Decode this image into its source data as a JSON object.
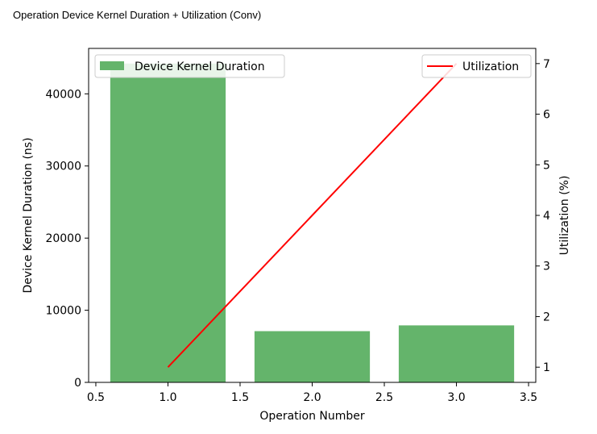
{
  "page_title": "Operation Device Kernel Duration + Utilization (Conv)",
  "colors": {
    "bar": "#64b46b",
    "line": "#ff0000"
  },
  "chart_data": {
    "type": "bar",
    "title": "",
    "xlabel": "Operation Number",
    "ylabel": "Device Kernel Duration (ns)",
    "y2label": "Utilization (%)",
    "x": [
      1,
      2,
      3
    ],
    "xlim": [
      0.45,
      3.55
    ],
    "xticks": [
      0.5,
      1.0,
      1.5,
      2.0,
      2.5,
      3.0,
      3.5
    ],
    "xtick_labels": [
      "0.5",
      "1.0",
      "1.5",
      "2.0",
      "2.5",
      "3.0",
      "3.5"
    ],
    "ylim": [
      0,
      46300
    ],
    "yticks": [
      0,
      10000,
      20000,
      30000,
      40000
    ],
    "ytick_labels": [
      "0",
      "10000",
      "20000",
      "30000",
      "40000"
    ],
    "y2lim": [
      0.7,
      7.3
    ],
    "y2ticks": [
      1,
      2,
      3,
      4,
      5,
      6,
      7
    ],
    "y2tick_labels": [
      "1",
      "2",
      "3",
      "4",
      "5",
      "6",
      "7"
    ],
    "series": [
      {
        "name": "Device Kernel Duration",
        "type": "bar",
        "values": [
          44200,
          7100,
          7900
        ]
      },
      {
        "name": "Utilization",
        "type": "line",
        "axis": "right",
        "values": [
          1.0,
          4.0,
          7.0
        ]
      }
    ],
    "legend": [
      "upper-left",
      "upper-right"
    ],
    "grid": false
  }
}
